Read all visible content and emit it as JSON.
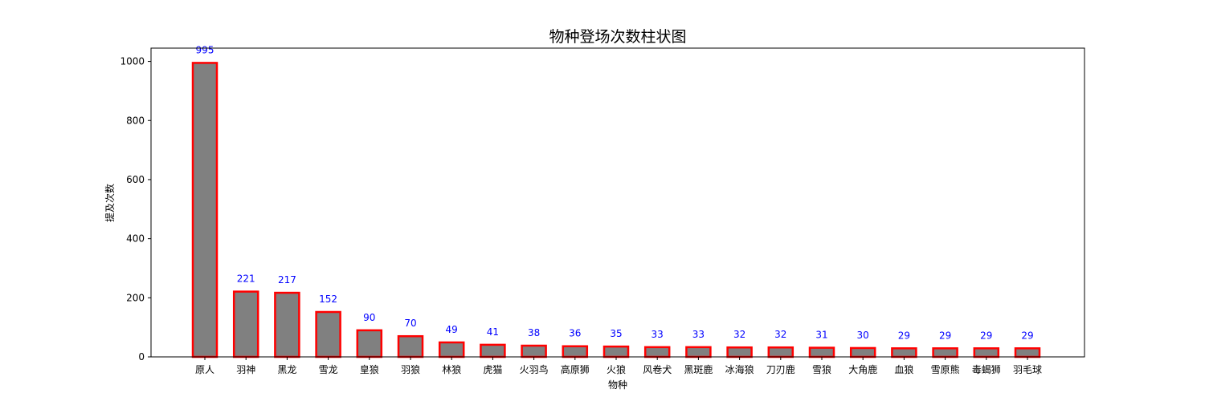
{
  "chart_data": {
    "type": "bar",
    "title": "物种登场次数柱状图",
    "xlabel": "物种",
    "ylabel": "提及次数",
    "categories": [
      "原人",
      "羽神",
      "黑龙",
      "雪龙",
      "皇狼",
      "羽狼",
      "林狼",
      "虎猫",
      "火羽鸟",
      "高原狮",
      "火狼",
      "风卷犬",
      "黑斑鹿",
      "冰海狼",
      "刀刃鹿",
      "雪狼",
      "大角鹿",
      "血狼",
      "雪原熊",
      "毒蝎狮",
      "羽毛球"
    ],
    "values": [
      995,
      221,
      217,
      152,
      90,
      70,
      49,
      41,
      38,
      36,
      35,
      33,
      33,
      32,
      32,
      31,
      30,
      29,
      29,
      29,
      29
    ],
    "ylim": [
      0,
      1045
    ],
    "yticks": [
      0,
      200,
      400,
      600,
      800,
      1000
    ],
    "grid": false,
    "bar_fill_color": "#808080",
    "bar_edge_color": "#ff0000",
    "data_label_color": "#0000ff"
  }
}
